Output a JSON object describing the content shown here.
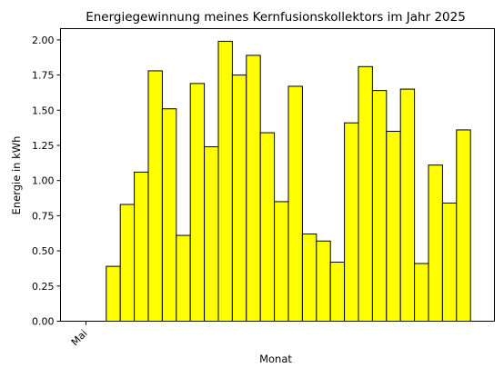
{
  "chart_data": {
    "type": "bar",
    "title": "Energiegewinnung meines Kernfusionskollektors im Jahr 2025",
    "xlabel": "Monat",
    "ylabel": "Energie in kWh",
    "ylim": [
      0,
      2.08
    ],
    "yticks": [
      "0.00",
      "0.25",
      "0.50",
      "0.75",
      "1.00",
      "1.25",
      "1.50",
      "1.75",
      "2.00"
    ],
    "xtick_labels": [
      "Mai"
    ],
    "bar_color": "#ffff00",
    "edge_color": "#000000",
    "grid": false,
    "legend": "none",
    "values": [
      0.0,
      0.0,
      0.39,
      0.83,
      1.06,
      1.78,
      1.51,
      0.61,
      1.69,
      1.24,
      1.99,
      1.75,
      1.89,
      1.34,
      0.85,
      1.67,
      0.62,
      0.57,
      0.42,
      1.41,
      1.81,
      1.64,
      1.35,
      1.65,
      0.41,
      1.11,
      0.84,
      1.36
    ]
  }
}
